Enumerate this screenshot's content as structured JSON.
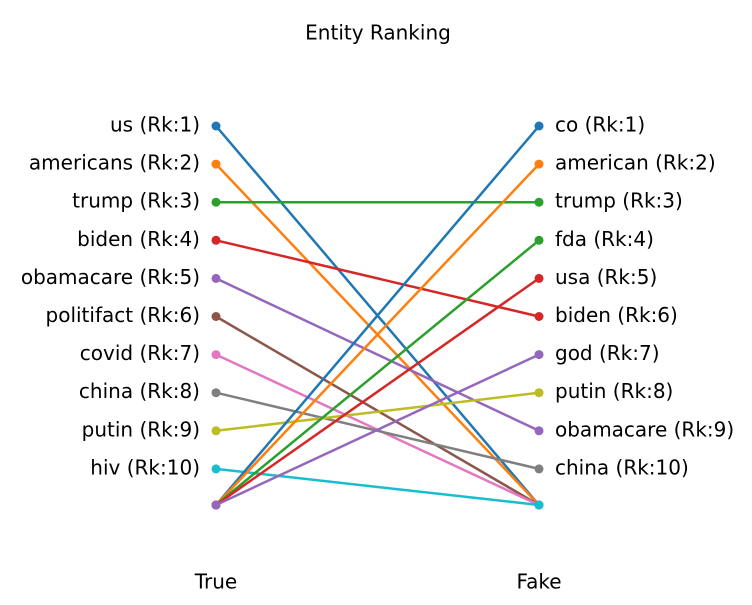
{
  "chart_data": {
    "type": "slope",
    "title": "Entity Ranking",
    "categories": [
      "True",
      "Fake"
    ],
    "left_labels": [
      "us (Rk:1)",
      "americans (Rk:2)",
      "trump (Rk:3)",
      "biden (Rk:4)",
      "obamacare (Rk:5)",
      "politifact (Rk:6)",
      "covid (Rk:7)",
      "china (Rk:8)",
      "putin (Rk:9)",
      "hiv (Rk:10)"
    ],
    "right_labels": [
      "co (Rk:1)",
      "american (Rk:2)",
      "trump (Rk:3)",
      "fda (Rk:4)",
      "usa (Rk:5)",
      "biden (Rk:6)",
      "god (Rk:7)",
      "putin (Rk:8)",
      "obamacare (Rk:9)",
      "china (Rk:10)"
    ],
    "ylim": [
      1,
      11
    ],
    "series": [
      {
        "color": "#1f77b4",
        "values": [
          1,
          null
        ]
      },
      {
        "color": "#ff7f0e",
        "values": [
          2,
          null
        ]
      },
      {
        "color": "#2ca02c",
        "values": [
          3,
          3
        ]
      },
      {
        "color": "#d62728",
        "values": [
          4,
          6
        ]
      },
      {
        "color": "#9467bd",
        "values": [
          5,
          9
        ]
      },
      {
        "color": "#8c564b",
        "values": [
          6,
          null
        ]
      },
      {
        "color": "#e377c2",
        "values": [
          7,
          null
        ]
      },
      {
        "color": "#7f7f7f",
        "values": [
          8,
          10
        ]
      },
      {
        "color": "#bcbd22",
        "values": [
          9,
          8
        ]
      },
      {
        "color": "#17becf",
        "values": [
          10,
          null
        ]
      },
      {
        "color": "#1f77b4",
        "values": [
          null,
          1
        ]
      },
      {
        "color": "#ff7f0e",
        "values": [
          null,
          2
        ]
      },
      {
        "color": "#2ca02c",
        "values": [
          null,
          4
        ]
      },
      {
        "color": "#d62728",
        "values": [
          null,
          5
        ]
      },
      {
        "color": "#9467bd",
        "values": [
          null,
          7
        ]
      }
    ]
  }
}
